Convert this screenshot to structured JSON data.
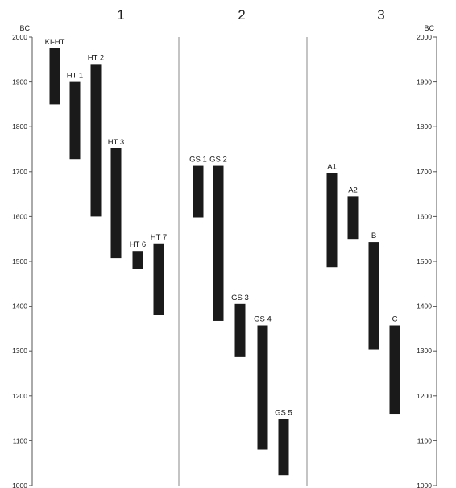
{
  "chart_data": {
    "type": "bar",
    "orientation": "vertical-range",
    "y_unit": "BC",
    "ylim": [
      1000,
      2000
    ],
    "yticks": [
      1000,
      1100,
      1200,
      1300,
      1400,
      1500,
      1600,
      1700,
      1800,
      1900,
      2000
    ],
    "axes": [
      "left",
      "right"
    ],
    "grid": false,
    "panels": [
      {
        "label": "1",
        "bars": [
          {
            "label": "KI-HT",
            "from": 1850,
            "to": 1975
          },
          {
            "label": "HT 1",
            "from": 1728,
            "to": 1900
          },
          {
            "label": "HT 2",
            "from": 1600,
            "to": 1940
          },
          {
            "label": "HT 3",
            "from": 1507,
            "to": 1752
          },
          {
            "label": "HT 6",
            "from": 1483,
            "to": 1523
          },
          {
            "label": "HT 7",
            "from": 1380,
            "to": 1540
          }
        ]
      },
      {
        "label": "2",
        "bars": [
          {
            "label": "GS 1",
            "from": 1598,
            "to": 1713
          },
          {
            "label": "GS 2",
            "from": 1367,
            "to": 1713
          },
          {
            "label": "GS 3",
            "from": 1288,
            "to": 1405
          },
          {
            "label": "GS 4",
            "from": 1080,
            "to": 1357
          },
          {
            "label": "GS 5",
            "from": 1023,
            "to": 1148
          }
        ]
      },
      {
        "label": "3",
        "bars": [
          {
            "label": "A1",
            "from": 1487,
            "to": 1697
          },
          {
            "label": "A2",
            "from": 1550,
            "to": 1645
          },
          {
            "label": "B",
            "from": 1303,
            "to": 1543
          },
          {
            "label": "C",
            "from": 1160,
            "to": 1357
          }
        ]
      }
    ],
    "colors": {
      "bar": "#1a1a1a",
      "axis": "#555555",
      "divider": "#888888"
    }
  }
}
